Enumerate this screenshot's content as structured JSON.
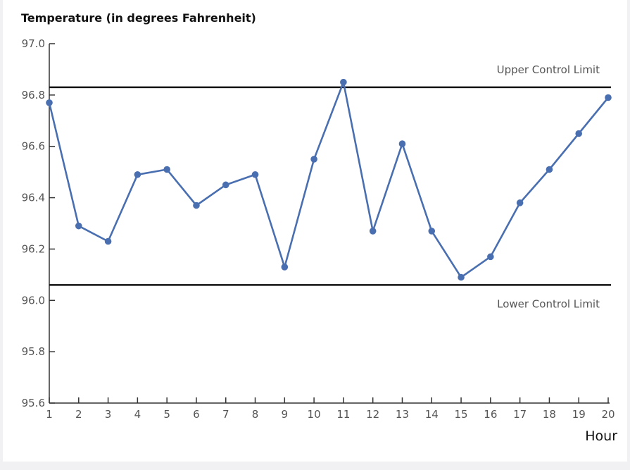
{
  "chart_data": {
    "type": "line",
    "ylabel": "Temperature (in degrees Fahrenheit)",
    "xlabel": "Hour",
    "ylim": [
      95.6,
      97.0
    ],
    "xlim": [
      1,
      20
    ],
    "y_ticks": [
      "97.0",
      "96.8",
      "96.6",
      "96.4",
      "96.2",
      "96.0",
      "95.8",
      "95.6"
    ],
    "y_tick_values": [
      97.0,
      96.8,
      96.6,
      96.4,
      96.2,
      96.0,
      95.8,
      95.6
    ],
    "x_ticks": [
      "1",
      "2",
      "3",
      "4",
      "5",
      "6",
      "7",
      "8",
      "9",
      "10",
      "11",
      "12",
      "13",
      "14",
      "15",
      "16",
      "17",
      "18",
      "19",
      "20"
    ],
    "x": [
      1,
      2,
      3,
      4,
      5,
      6,
      7,
      8,
      9,
      10,
      11,
      12,
      13,
      14,
      15,
      16,
      17,
      18,
      19,
      20
    ],
    "values": [
      96.77,
      96.29,
      96.23,
      96.49,
      96.51,
      96.37,
      96.45,
      96.49,
      96.13,
      96.55,
      96.85,
      96.27,
      96.61,
      96.27,
      96.09,
      96.17,
      96.38,
      96.51,
      96.65,
      96.79
    ],
    "upper_control_limit": {
      "label": "Upper Control Limit",
      "value": 96.83
    },
    "lower_control_limit": {
      "label": "Lower Control Limit",
      "value": 96.06
    },
    "grid": false,
    "series_color": "#4a6fb0"
  }
}
